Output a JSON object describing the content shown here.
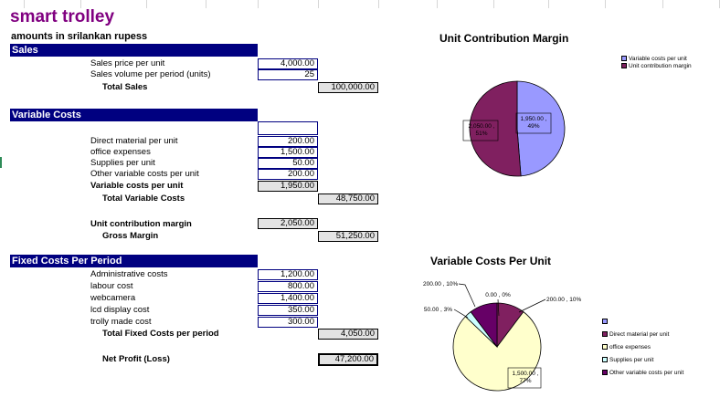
{
  "sheet": {
    "title": "smart trolley",
    "subtitle": "amounts in srilankan rupess"
  },
  "sales": {
    "header": "Sales",
    "price_label": "Sales price per unit",
    "price_value": "4,000.00",
    "volume_label": "Sales volume per period (units)",
    "volume_value": "25",
    "total_label": "Total Sales",
    "total_value": "100,000.00"
  },
  "variable": {
    "header": "Variable Costs",
    "items": [
      {
        "label": "Direct material per unit",
        "value": "200.00"
      },
      {
        "label": "office expenses",
        "value": "1,500.00"
      },
      {
        "label": "Supplies per unit",
        "value": "50.00"
      },
      {
        "label": "Other variable costs per unit",
        "value": "200.00"
      }
    ],
    "per_unit_label": "Variable costs per unit",
    "per_unit_value": "1,950.00",
    "total_label": "Total Variable Costs",
    "total_value": "48,750.00",
    "ucm_label": "Unit contribution margin",
    "ucm_value": "2,050.00",
    "gross_label": "Gross Margin",
    "gross_value": "51,250.00"
  },
  "fixed": {
    "header": "Fixed Costs Per Period",
    "items": [
      {
        "label": "Administrative costs",
        "value": "1,200.00"
      },
      {
        "label": "labour cost",
        "value": "800.00"
      },
      {
        "label": "webcamera",
        "value": "1,400.00"
      },
      {
        "label": "lcd display cost",
        "value": "350.00"
      },
      {
        "label": "trolly made cost",
        "value": "300.00"
      }
    ],
    "total_label": "Total Fixed Costs per period",
    "total_value": "4,050.00",
    "net_label": "Net Profit (Loss)",
    "net_value": "47,200.00"
  },
  "chart_data": [
    {
      "type": "pie",
      "title": "Unit Contribution Margin",
      "categories": [
        "Variable costs per unit",
        "Unit contribution margin"
      ],
      "values": [
        1950,
        2050
      ],
      "percent": [
        49,
        51
      ],
      "slice_labels": [
        "1,950.00 , 49%",
        "2,050.00 , 51%"
      ],
      "colors": [
        "#9999ff",
        "#802060"
      ],
      "legend_position": "top-right"
    },
    {
      "type": "pie",
      "title": "Variable Costs Per Unit",
      "categories": [
        "",
        "Direct material per unit",
        "office expenses",
        "Supplies per unit",
        "Other variable costs per unit"
      ],
      "values": [
        0,
        200,
        1500,
        50,
        200
      ],
      "percent": [
        0,
        10,
        77,
        3,
        10
      ],
      "slice_labels": [
        "0.00 , 0%",
        "200.00 , 10%",
        "1,500.00 , 77%",
        "50.00 , 3%",
        "200.00 , 10%"
      ],
      "colors": [
        "#9999ff",
        "#802060",
        "#ffffcc",
        "#ccffff",
        "#660066"
      ],
      "legend_position": "bottom-right"
    }
  ]
}
